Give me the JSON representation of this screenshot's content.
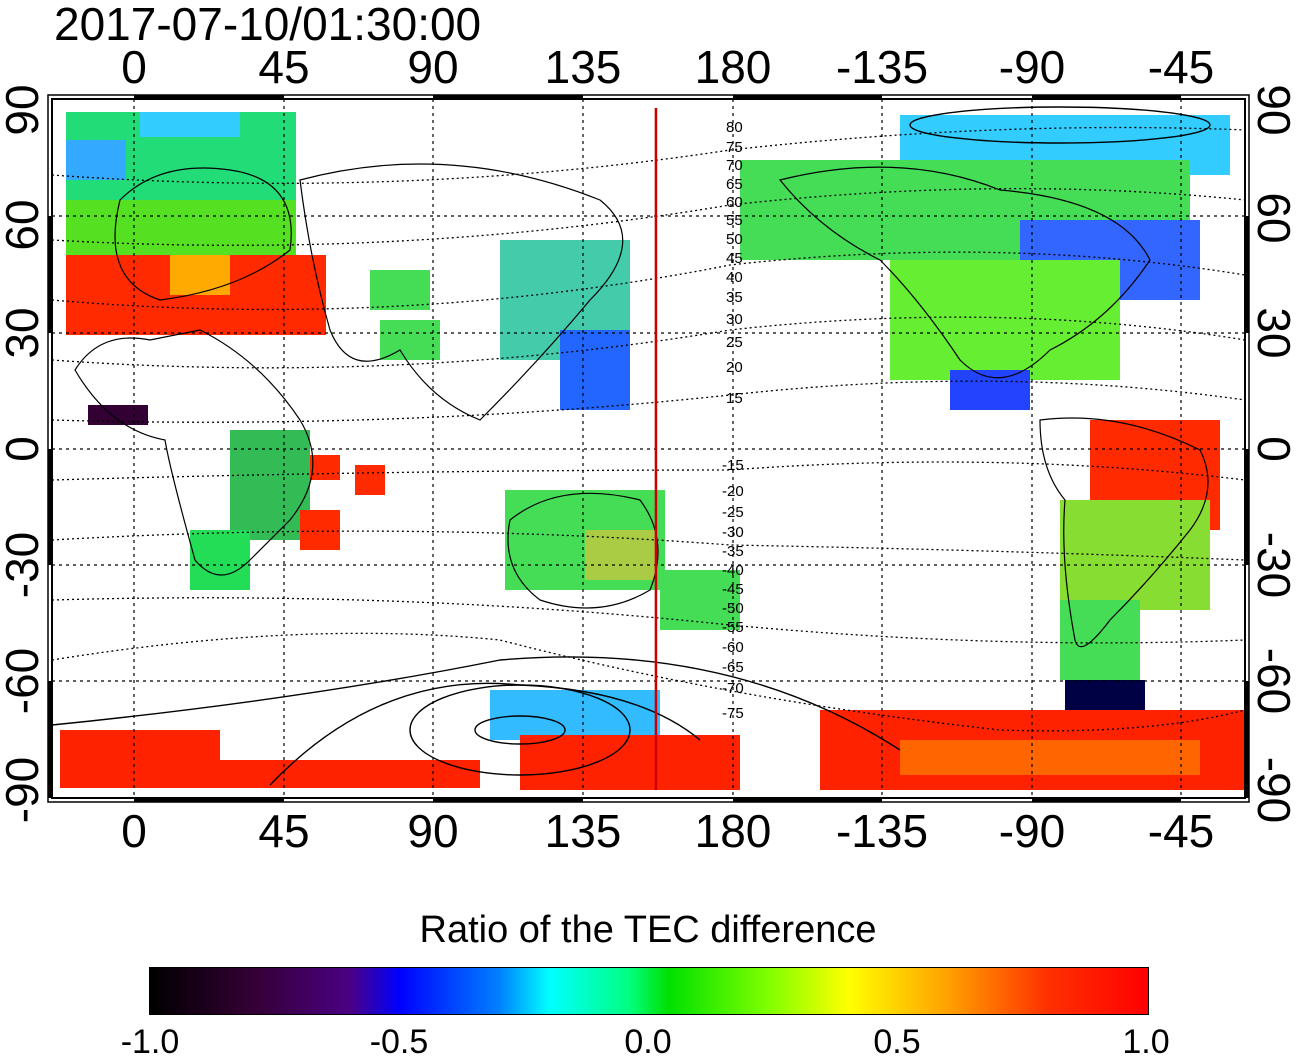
{
  "timestamp": "2017-07-10/01:30:00",
  "longitude_ticks": [
    "0",
    "45",
    "90",
    "135",
    "180",
    "-135",
    "-90",
    "-45"
  ],
  "latitude_ticks": [
    "90",
    "60",
    "30",
    "0",
    "-30",
    "-60",
    "-90"
  ],
  "contour_labels_north": [
    "80",
    "75",
    "70",
    "65",
    "60",
    "55",
    "50",
    "45",
    "40",
    "35",
    "30",
    "25",
    "20",
    "15"
  ],
  "contour_labels_south": [
    "-15",
    "-20",
    "-25",
    "-30",
    "-35",
    "-40",
    "-45",
    "-50",
    "-55",
    "-60",
    "-65",
    "-70",
    "-75"
  ],
  "terminator_longitude": 157,
  "colorbar": {
    "title": "Ratio of the TEC difference",
    "ticks": [
      "-1.0",
      "-0.5",
      "0.0",
      "0.5",
      "1.0"
    ],
    "range": [
      -1.0,
      1.0
    ]
  },
  "colors": {
    "strong_positive": "#ff0000",
    "neutral": "#00e000",
    "strong_negative": "#0000ff",
    "terminator": "#cc0000"
  }
}
